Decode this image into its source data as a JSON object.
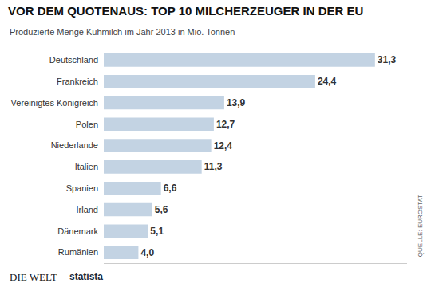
{
  "chart_data": {
    "type": "bar",
    "orientation": "horizontal",
    "title": "VOR DEM QUOTENAUS: TOP 10 MILCHERZEUGER IN DER EU",
    "subtitle": "Produzierte Menge Kuhmilch im Jahr 2013 in Mio. Tonnen",
    "categories": [
      "Deutschland",
      "Frankreich",
      "Vereinigtes Königreich",
      "Polen",
      "Niederlande",
      "Italien",
      "Spanien",
      "Irland",
      "Dänemark",
      "Rumänien"
    ],
    "values": [
      31.3,
      24.4,
      13.9,
      12.7,
      12.4,
      11.3,
      6.6,
      5.6,
      5.1,
      4.0
    ],
    "value_labels": [
      "31,3",
      "24,4",
      "13,9",
      "12,7",
      "12,4",
      "11,3",
      "6,6",
      "5,6",
      "5,1",
      "4,0"
    ],
    "data_labels": true,
    "color": "#c3d3e3",
    "xlim": [
      0,
      35
    ],
    "xticks": [],
    "tick_labels": "y",
    "grid": false,
    "annotations": [
      "QUELLE: EUROSTAT",
      "DIE WELT",
      "statista"
    ]
  }
}
